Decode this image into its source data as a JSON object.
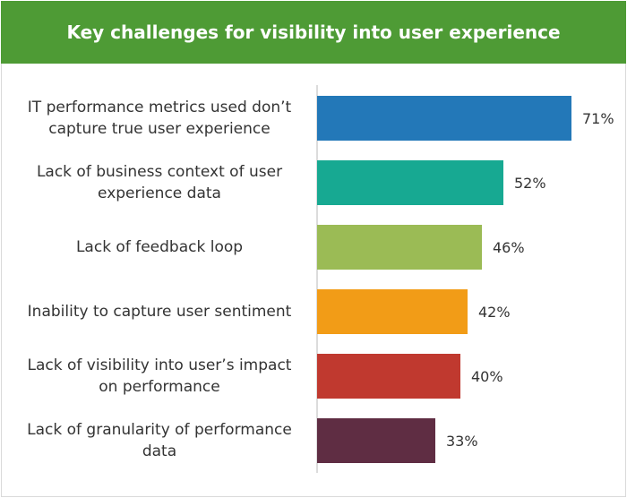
{
  "chart_data": {
    "type": "bar",
    "orientation": "horizontal",
    "title": "Key challenges for visibility into user experience",
    "categories": [
      [
        "IT performance metrics used don’t",
        "capture true user experience"
      ],
      [
        "Lack of business context of user",
        "experience data"
      ],
      [
        "Lack of feedback loop"
      ],
      [
        "Inability to capture user sentiment"
      ],
      [
        "Lack of visibility into user’s impact",
        "on performance"
      ],
      [
        "Lack of granularity of performance",
        "data"
      ]
    ],
    "values": [
      71,
      52,
      46,
      42,
      40,
      33
    ],
    "value_labels": [
      "71%",
      "52%",
      "46%",
      "42%",
      "40%",
      "33%"
    ],
    "colors": [
      "#2378b8",
      "#17a992",
      "#9bbb55",
      "#f29c17",
      "#c0392f",
      "#5f2d43"
    ],
    "xlim": [
      0,
      100
    ],
    "xlabel": "",
    "ylabel": "",
    "grid": false,
    "legend": "none"
  },
  "theme": {
    "header_bg": "#4e9b35",
    "axis_color": "#d0d0d0",
    "label_color": "#333333"
  }
}
